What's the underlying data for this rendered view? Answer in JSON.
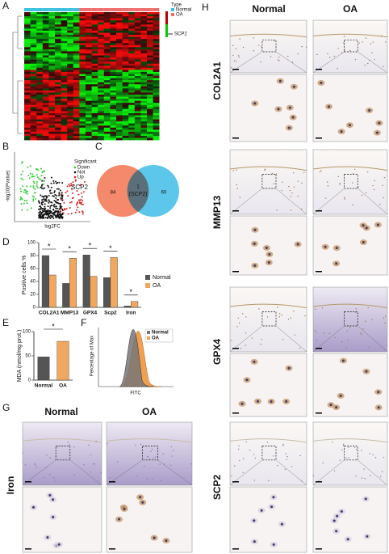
{
  "panel_labels": [
    "A",
    "B",
    "C",
    "D",
    "E",
    "F",
    "G",
    "H"
  ],
  "heatmap": {
    "highlight": "SCP2",
    "legend_title": "Type",
    "legend": [
      "Normal",
      "OA"
    ]
  },
  "volcano": {
    "highlight": "SCP2",
    "x_label": "log2FC",
    "y_label": "-log10(Pvalue)",
    "legend_title": "Significant",
    "legend": [
      "Down",
      "Not",
      "Up"
    ]
  },
  "venn": {
    "left": 84,
    "center": 1,
    "center_note": "(SCP2)",
    "right": 60
  },
  "flow": {
    "x_label": "FITC",
    "y_label": "Percentage of Max",
    "legend": [
      "Normal",
      "OA"
    ]
  },
  "panel_g": {
    "columns": [
      "Normal",
      "OA"
    ],
    "rows": [
      "Iron"
    ]
  },
  "panel_h": {
    "columns": [
      "Normal",
      "OA"
    ],
    "rows": [
      "COL2A1",
      "MMP13",
      "GPX4",
      "SCP2"
    ]
  },
  "chart_data": [
    {
      "type": "bar",
      "y_label": "Positive cells %",
      "categories": [
        "COL2A1",
        "MMP13",
        "GPX4",
        "Scp2",
        "Iron"
      ],
      "series": [
        {
          "name": "Normal",
          "color": "#555555",
          "values": [
            80,
            37,
            81,
            46,
            2
          ]
        },
        {
          "name": "OA",
          "color": "#f0a860",
          "values": [
            50,
            76,
            48,
            77,
            9
          ]
        }
      ],
      "ylim": [
        0,
        100
      ],
      "yticks": [
        0,
        20,
        40,
        60,
        80,
        100
      ],
      "significance": [
        "*",
        "*",
        "*",
        "*",
        "*"
      ]
    },
    {
      "type": "bar",
      "y_label": "MDA (nmol/mg prot.)",
      "categories": [
        "Normal",
        "OA"
      ],
      "values": [
        48,
        80
      ],
      "colors": [
        "#555555",
        "#f0a860"
      ],
      "ylim": [
        0,
        100
      ],
      "yticks": [
        0,
        50,
        100
      ],
      "significance": "*"
    }
  ]
}
